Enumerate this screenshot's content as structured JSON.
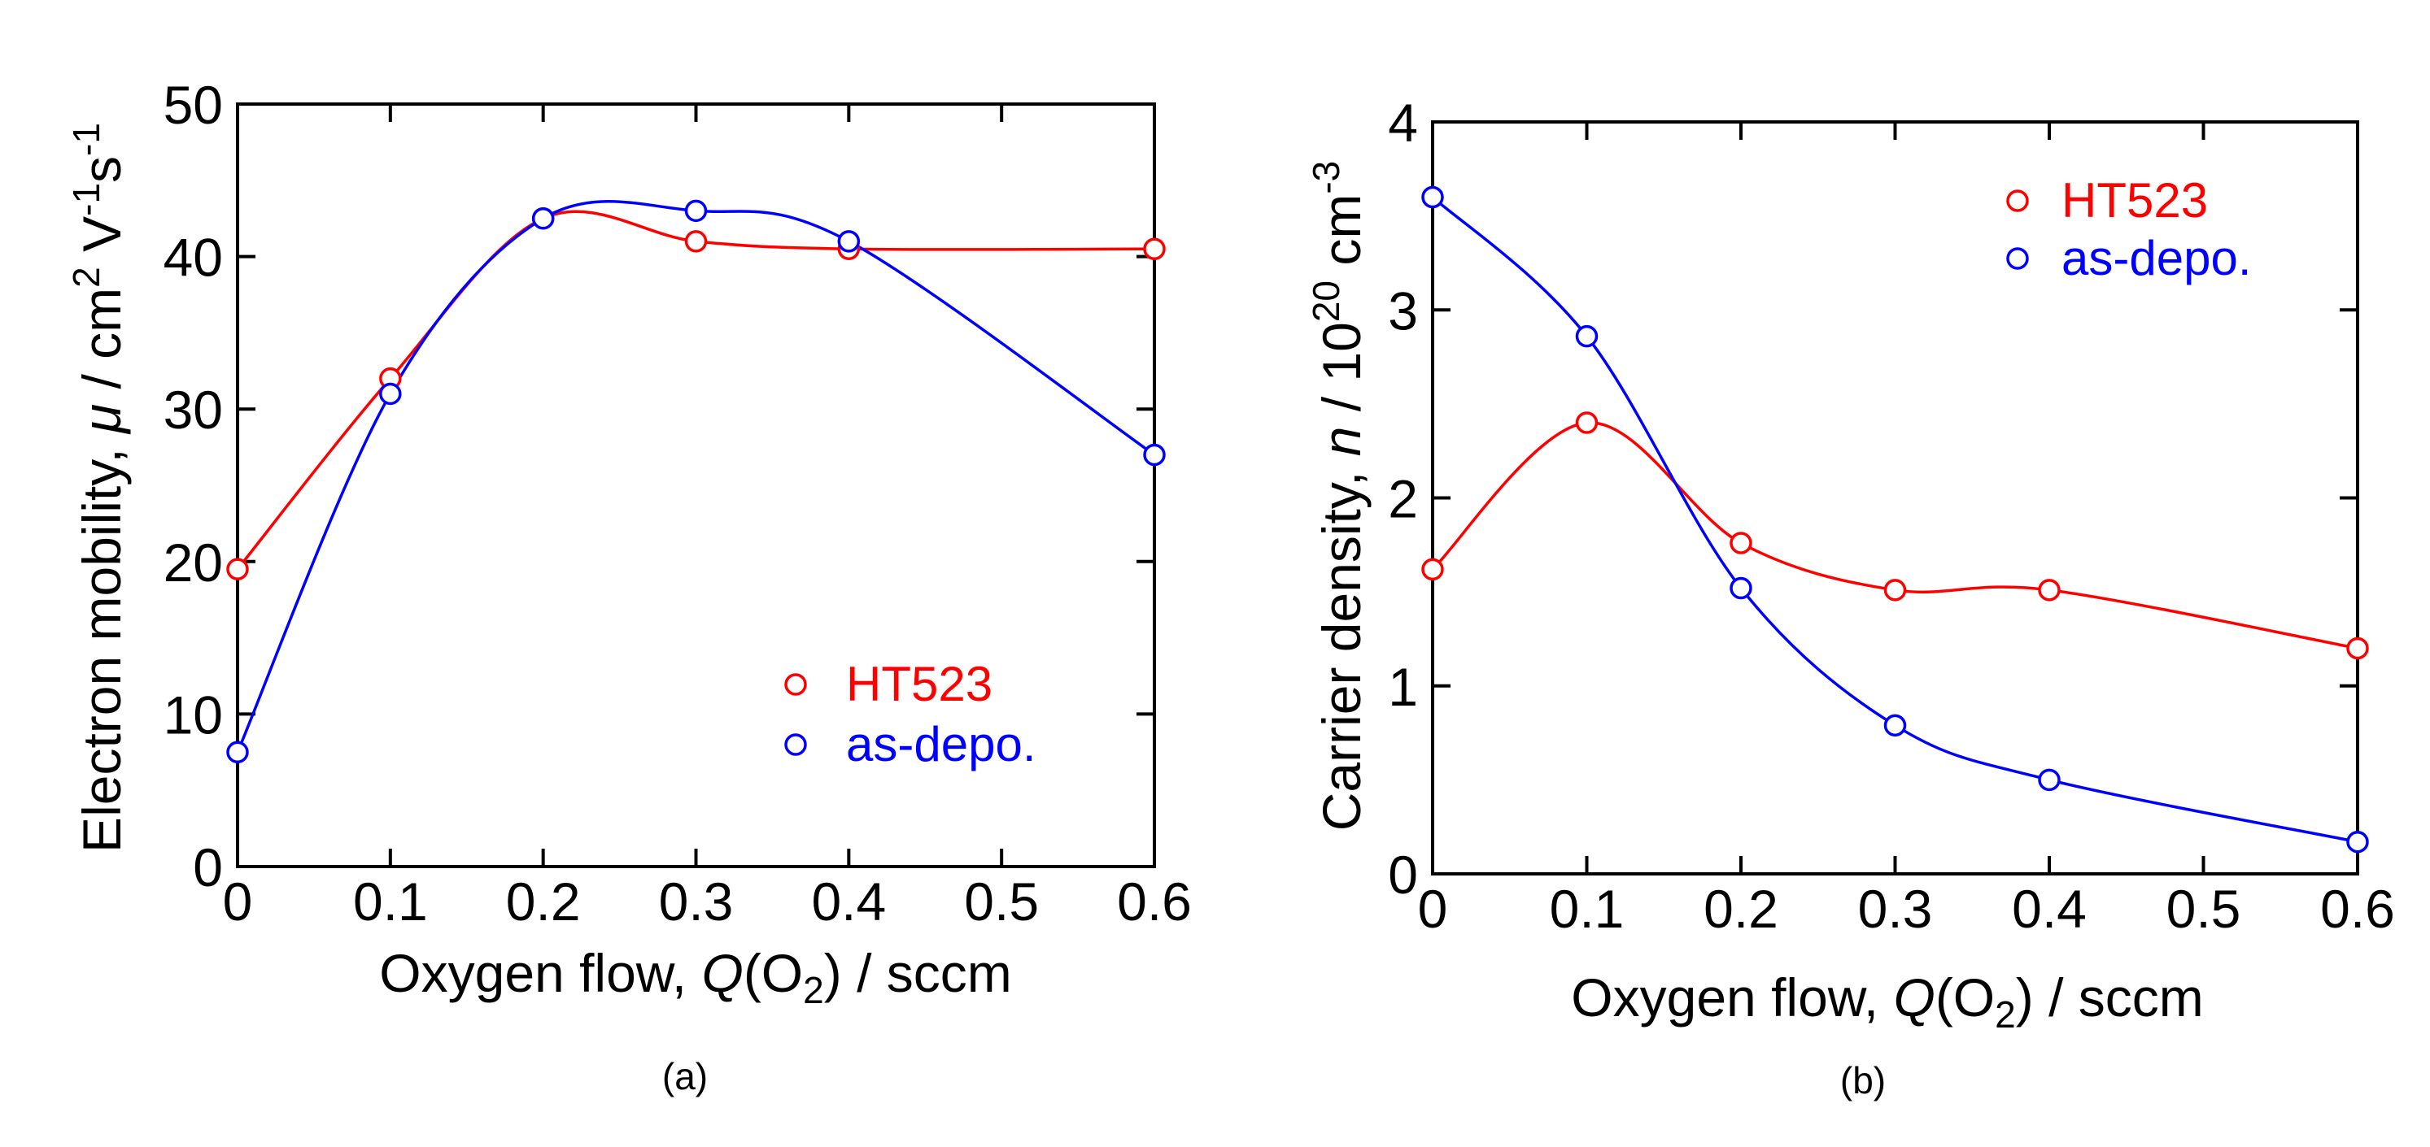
{
  "chart_data": [
    {
      "type": "line",
      "panel": "(a)",
      "caption": "(a)",
      "xlabel_pre": "Oxygen flow, ",
      "xlabel_var": "Q",
      "xlabel_species": "(O",
      "xlabel_sub": "2",
      "xlabel_unit": ") / sccm",
      "ylabel_pre": "Electron mobility, ",
      "ylabel_var": "μ",
      "ylabel_unit": " / cm",
      "ylabel_sup1": "2",
      "ylabel_v": " V",
      "ylabel_sup2": "-1",
      "ylabel_s": "s",
      "ylabel_sup3": "-1",
      "xlim": [
        0,
        0.6
      ],
      "ylim": [
        0,
        50
      ],
      "xticks": [
        "0",
        "0.1",
        "0.2",
        "0.3",
        "0.4",
        "0.5",
        "0.6"
      ],
      "yticks": [
        "0",
        "10",
        "20",
        "30",
        "40",
        "50"
      ],
      "legend_position": "lower-right",
      "series": [
        {
          "name": "HT523",
          "color": "#ff0000",
          "marker": "open-circle",
          "x": [
            0,
            0.1,
            0.2,
            0.3,
            0.4,
            0.6
          ],
          "y": [
            19.5,
            32,
            42.5,
            41,
            40.5,
            40.5
          ]
        },
        {
          "name": "as-depo.",
          "color": "#0000ff",
          "marker": "open-circle",
          "x": [
            0,
            0.1,
            0.2,
            0.3,
            0.4,
            0.6
          ],
          "y": [
            7.5,
            31,
            42.5,
            43,
            41,
            27
          ]
        }
      ]
    },
    {
      "type": "line",
      "panel": "(b)",
      "caption": "(b)",
      "xlabel_pre": "Oxygen flow, ",
      "xlabel_var": "Q",
      "xlabel_species": "(O",
      "xlabel_sub": "2",
      "xlabel_unit": ") / sccm",
      "ylabel_pre": "Carrier density, ",
      "ylabel_var": "n",
      "ylabel_unit": " / 10",
      "ylabel_sup1": "20",
      "ylabel_cm": " cm",
      "ylabel_sup2": "-3",
      "xlim": [
        0,
        0.6
      ],
      "ylim": [
        0,
        4
      ],
      "xticks": [
        "0",
        "0.1",
        "0.2",
        "0.3",
        "0.4",
        "0.5",
        "0.6"
      ],
      "yticks": [
        "0",
        "1",
        "2",
        "3",
        "4"
      ],
      "legend_position": "upper-right",
      "series": [
        {
          "name": "HT523",
          "color": "#ff0000",
          "marker": "open-circle",
          "x": [
            0,
            0.1,
            0.2,
            0.3,
            0.4,
            0.6
          ],
          "y": [
            1.62,
            2.4,
            1.76,
            1.51,
            1.51,
            1.2
          ]
        },
        {
          "name": "as-depo.",
          "color": "#0000ff",
          "marker": "open-circle",
          "x": [
            0,
            0.1,
            0.2,
            0.3,
            0.4,
            0.6
          ],
          "y": [
            3.6,
            2.86,
            1.52,
            0.79,
            0.5,
            0.17
          ]
        }
      ]
    }
  ]
}
